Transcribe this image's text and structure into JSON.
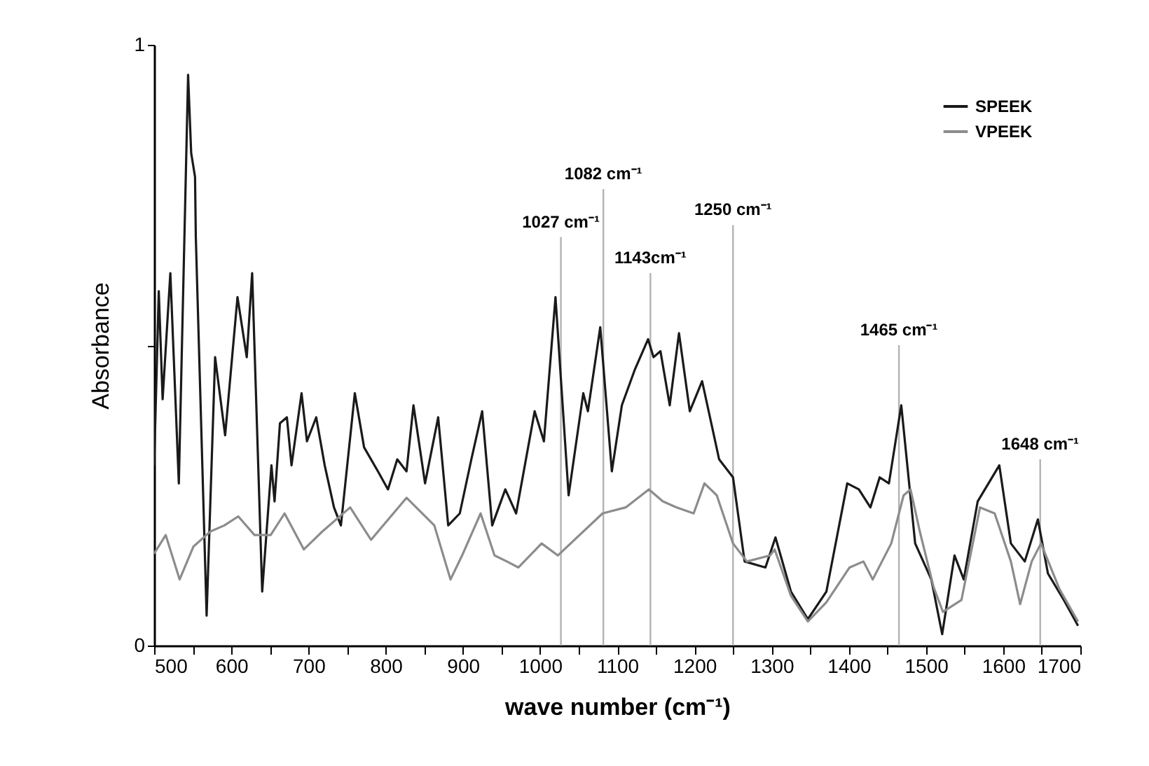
{
  "chart_data": {
    "type": "line",
    "xlabel": "wave number (cm⁻¹)",
    "ylabel": "Absorbance",
    "xlim": [
      500,
      1700
    ],
    "ylim": [
      0,
      1
    ],
    "xticks": [
      500,
      {
        "value": 550,
        "label": null
      },
      600,
      {
        "value": 650,
        "label": null
      },
      700,
      {
        "value": 750,
        "label": null
      },
      800,
      {
        "value": 850,
        "label": null
      },
      900,
      {
        "value": 950,
        "label": null
      },
      1000,
      {
        "value": 1050,
        "label": null
      },
      1100,
      {
        "value": 1150,
        "label": null
      },
      1200,
      {
        "value": 1250,
        "label": null
      },
      1300,
      {
        "value": 1350,
        "label": null
      },
      1400,
      {
        "value": 1450,
        "label": null
      },
      1500,
      {
        "value": 1550,
        "label": null
      },
      1600,
      {
        "value": 1650,
        "label": null
      },
      1700
    ],
    "yticks": [
      0,
      {
        "value": 0.5,
        "label": null
      },
      1
    ],
    "legend": "top right",
    "grid": false,
    "series": [
      {
        "name": "SPEEK",
        "color": "#1a1a1a",
        "x": [
          500,
          506,
          511,
          521,
          532,
          544,
          548,
          553,
          554,
          568,
          579,
          592,
          608,
          620,
          627,
          640,
          652,
          656,
          663,
          672,
          678,
          691,
          698,
          710,
          721,
          733,
          742,
          760,
          772,
          790,
          803,
          815,
          827,
          836,
          851,
          868,
          881,
          896,
          911,
          925,
          938,
          955,
          969,
          993,
          1005,
          1020,
          1037,
          1056,
          1062,
          1078,
          1093,
          1106,
          1123,
          1140,
          1147,
          1156,
          1168,
          1180,
          1194,
          1210,
          1232,
          1250,
          1265,
          1292,
          1305,
          1325,
          1347,
          1371,
          1398,
          1413,
          1428,
          1440,
          1452,
          1468,
          1486,
          1507,
          1521,
          1537,
          1549,
          1567,
          1595,
          1610,
          1628,
          1645,
          1658,
          1679,
          1697
        ],
        "values": [
          0.3,
          0.59,
          0.41,
          0.62,
          0.27,
          0.95,
          0.82,
          0.78,
          0.68,
          0.05,
          0.48,
          0.35,
          0.58,
          0.48,
          0.62,
          0.09,
          0.3,
          0.24,
          0.37,
          0.38,
          0.3,
          0.42,
          0.34,
          0.38,
          0.3,
          0.23,
          0.2,
          0.42,
          0.33,
          0.29,
          0.26,
          0.31,
          0.29,
          0.4,
          0.27,
          0.38,
          0.2,
          0.22,
          0.31,
          0.39,
          0.2,
          0.26,
          0.22,
          0.39,
          0.34,
          0.58,
          0.25,
          0.42,
          0.39,
          0.53,
          0.29,
          0.4,
          0.46,
          0.51,
          0.48,
          0.49,
          0.4,
          0.52,
          0.39,
          0.44,
          0.31,
          0.28,
          0.14,
          0.13,
          0.18,
          0.09,
          0.044,
          0.09,
          0.27,
          0.26,
          0.23,
          0.28,
          0.27,
          0.4,
          0.17,
          0.11,
          0.019,
          0.15,
          0.11,
          0.24,
          0.3,
          0.17,
          0.14,
          0.21,
          0.12,
          0.075,
          0.033
        ]
      },
      {
        "name": "VPEEK",
        "color": "#8c8c8c",
        "x": [
          500,
          515,
          533,
          551,
          573,
          591,
          609,
          630,
          651,
          669,
          694,
          718,
          754,
          781,
          827,
          863,
          884,
          899,
          923,
          941,
          957,
          972,
          1002,
          1023,
          1081,
          1111,
          1141,
          1159,
          1177,
          1199,
          1213,
          1229,
          1250,
          1268,
          1298,
          1304,
          1325,
          1347,
          1371,
          1401,
          1419,
          1431,
          1455,
          1471,
          1480,
          1492,
          1510,
          1522,
          1546,
          1570,
          1589,
          1610,
          1622,
          1637,
          1649,
          1673,
          1697
        ],
        "values": [
          0.153,
          0.184,
          0.11,
          0.165,
          0.19,
          0.2,
          0.215,
          0.184,
          0.184,
          0.22,
          0.16,
          0.19,
          0.23,
          0.176,
          0.246,
          0.2,
          0.11,
          0.15,
          0.22,
          0.15,
          0.14,
          0.13,
          0.17,
          0.15,
          0.22,
          0.23,
          0.26,
          0.24,
          0.23,
          0.22,
          0.27,
          0.25,
          0.17,
          0.14,
          0.15,
          0.16,
          0.083,
          0.04,
          0.072,
          0.13,
          0.14,
          0.11,
          0.17,
          0.25,
          0.26,
          0.19,
          0.097,
          0.056,
          0.076,
          0.23,
          0.22,
          0.14,
          0.069,
          0.14,
          0.17,
          0.094,
          0.04
        ]
      }
    ],
    "ref_lines": [
      {
        "axis": "x",
        "value": 1027,
        "label": "1027 cm⁻¹",
        "color": "#b3b3b3"
      },
      {
        "axis": "x",
        "value": 1082,
        "label": "1082 cm⁻¹",
        "color": "#b3b3b3"
      },
      {
        "axis": "x",
        "value": 1143,
        "label": "1143cm⁻¹",
        "color": "#b3b3b3"
      },
      {
        "axis": "x",
        "value": 1250,
        "label": "1250 cm⁻¹",
        "color": "#b3b3b3"
      },
      {
        "axis": "x",
        "value": 1465,
        "label": "1465 cm⁻¹",
        "color": "#b3b3b3"
      },
      {
        "axis": "x",
        "value": 1648,
        "label": "1648 cm⁻¹",
        "color": "#b3b3b3"
      }
    ]
  }
}
